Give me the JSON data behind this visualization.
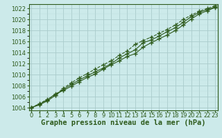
{
  "xlabel": "Graphe pression niveau de la mer (hPa)",
  "hours": [
    0,
    1,
    2,
    3,
    4,
    5,
    6,
    7,
    8,
    9,
    10,
    11,
    12,
    13,
    14,
    15,
    16,
    17,
    18,
    19,
    20,
    21,
    22,
    23
  ],
  "line1": [
    1004.0,
    1004.5,
    1005.2,
    1006.2,
    1007.3,
    1008.2,
    1009.0,
    1009.8,
    1010.5,
    1011.2,
    1012.0,
    1013.0,
    1013.8,
    1014.5,
    1015.8,
    1016.3,
    1017.0,
    1017.8,
    1018.5,
    1019.5,
    1020.5,
    1021.3,
    1021.8,
    1022.3
  ],
  "line2": [
    1004.0,
    1004.6,
    1005.4,
    1006.5,
    1007.1,
    1007.9,
    1008.7,
    1009.5,
    1010.1,
    1011.0,
    1011.8,
    1012.5,
    1013.3,
    1013.8,
    1015.0,
    1015.8,
    1016.5,
    1017.2,
    1018.0,
    1019.0,
    1020.1,
    1021.0,
    1021.6,
    1022.2
  ],
  "line3": [
    1004.0,
    1004.7,
    1005.5,
    1006.3,
    1007.5,
    1008.5,
    1009.4,
    1010.2,
    1011.0,
    1011.8,
    1012.5,
    1013.5,
    1014.3,
    1015.5,
    1016.2,
    1016.8,
    1017.5,
    1018.2,
    1019.0,
    1020.0,
    1020.8,
    1021.5,
    1022.0,
    1022.5
  ],
  "line_color": "#2d5a1b",
  "bg_color": "#cceaea",
  "grid_major_color": "#aacccc",
  "grid_minor_color": "#bbdddd",
  "ylim": [
    1003.5,
    1022.8
  ],
  "yticks": [
    1004,
    1006,
    1008,
    1010,
    1012,
    1014,
    1016,
    1018,
    1020,
    1022
  ],
  "xlabel_fontsize": 7.5,
  "tick_fontsize": 6,
  "line_width": 0.8,
  "marker_size": 4
}
